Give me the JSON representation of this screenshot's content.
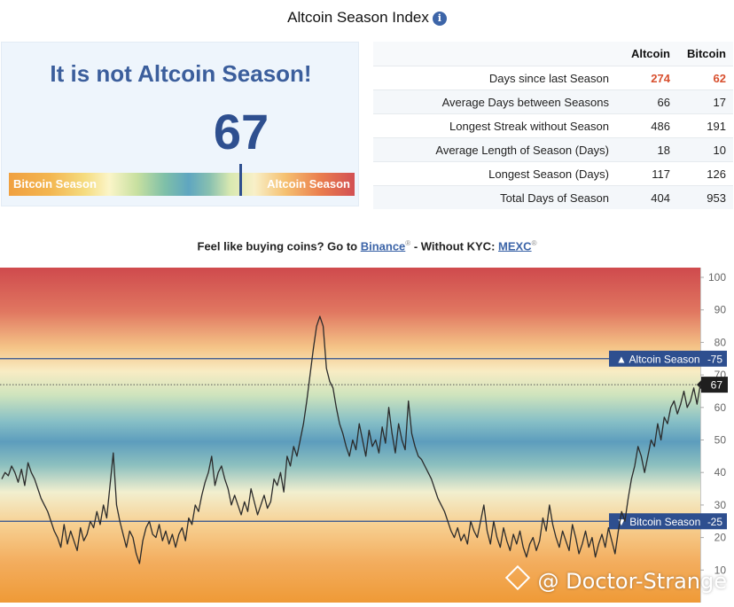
{
  "header": {
    "title": "Altcoin Season Index",
    "info_icon": "info-icon"
  },
  "status": {
    "headline": "It is not Altcoin Season!",
    "value": "67",
    "value_number": 67,
    "gauge_left": "Bitcoin Season",
    "gauge_right": "Altcoin Season"
  },
  "stats": {
    "col_alt": "Altcoin",
    "col_btc": "Bitcoin",
    "rows": [
      {
        "label": "Days since last Season",
        "alt": "274",
        "btc": "62"
      },
      {
        "label": "Average Days between Seasons",
        "alt": "66",
        "btc": "17"
      },
      {
        "label": "Longest Streak without Season",
        "alt": "486",
        "btc": "191"
      },
      {
        "label": "Average Length of Season (Days)",
        "alt": "18",
        "btc": "10"
      },
      {
        "label": "Longest Season (Days)",
        "alt": "117",
        "btc": "126"
      },
      {
        "label": "Total Days of Season",
        "alt": "404",
        "btc": "953"
      }
    ],
    "highlight_color": "#d8502f"
  },
  "promo": {
    "prefix": "Feel like buying coins? Go to ",
    "link1": "Binance",
    "mid": " - Without KYC: ",
    "link2": "MEXC",
    "reg": "®"
  },
  "chart_data": {
    "type": "line",
    "ylim": [
      0,
      103
    ],
    "yticks": [
      10,
      20,
      30,
      40,
      50,
      60,
      70,
      80,
      90,
      100
    ],
    "ytick_labels": [
      "10",
      "20",
      "30",
      "40",
      "50",
      "60",
      "70",
      "80",
      "90",
      "100"
    ],
    "grid": false,
    "background": "vertical gradient red (top) to blue (middle) to orange (bottom)",
    "thresholds": [
      {
        "label": "Altcoin Season",
        "value": 75,
        "value_label": "75",
        "marker": "▲"
      },
      {
        "label": "Bitcoin Season",
        "value": 25,
        "value_label": "25",
        "marker": "▼"
      }
    ],
    "current": {
      "value": 67,
      "label": "67"
    },
    "line_color": "#2b2b2b",
    "series": [
      {
        "values": [
          38,
          40,
          39,
          42,
          40,
          37,
          41,
          36,
          43,
          40,
          38,
          35,
          32,
          30,
          28,
          25,
          22,
          20,
          17,
          24,
          18,
          22,
          19,
          16,
          23,
          19,
          21,
          25,
          23,
          28,
          24,
          30,
          26,
          36,
          46,
          30,
          25,
          21,
          17,
          22,
          20,
          15,
          12,
          19,
          23,
          25,
          21,
          20,
          24,
          19,
          22,
          18,
          21,
          17,
          21,
          23,
          19,
          26,
          24,
          30,
          28,
          33,
          37,
          40,
          45,
          36,
          40,
          42,
          38,
          35,
          30,
          33,
          30,
          27,
          31,
          28,
          35,
          31,
          27,
          30,
          33,
          29,
          31,
          38,
          36,
          40,
          34,
          45,
          42,
          48,
          45,
          50,
          55,
          62,
          70,
          78,
          85,
          88,
          85,
          72,
          68,
          66,
          60,
          55,
          52,
          48,
          45,
          50,
          47,
          55,
          50,
          45,
          53,
          48,
          50,
          46,
          54,
          49,
          60,
          52,
          46,
          55,
          50,
          47,
          62,
          52,
          48,
          45,
          44,
          42,
          40,
          38,
          35,
          32,
          30,
          28,
          25,
          22,
          20,
          23,
          19,
          21,
          18,
          25,
          22,
          20,
          25,
          30,
          22,
          18,
          25,
          20,
          17,
          23,
          19,
          16,
          21,
          18,
          22,
          17,
          14,
          18,
          20,
          16,
          19,
          26,
          22,
          30,
          24,
          20,
          17,
          22,
          19,
          16,
          24,
          20,
          15,
          18,
          22,
          17,
          20,
          14,
          18,
          21,
          17,
          23,
          19,
          15,
          22,
          28,
          25,
          32,
          38,
          42,
          48,
          45,
          40,
          45,
          50,
          48,
          55,
          50,
          57,
          55,
          60,
          62,
          58,
          61,
          65,
          60,
          62,
          66,
          61,
          67
        ]
      }
    ]
  }
}
